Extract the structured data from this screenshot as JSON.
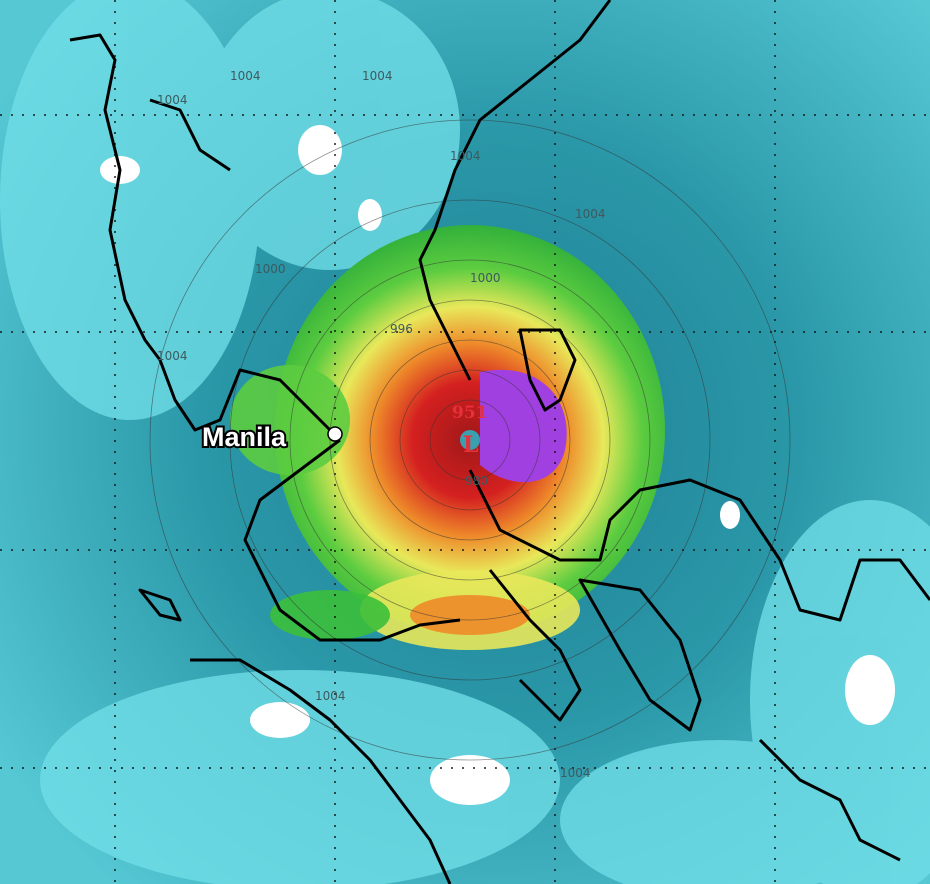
{
  "map": {
    "city_label": "Manila",
    "low_center": {
      "symbol": "L",
      "pressure": "951"
    },
    "isobar_labels": [
      "1004",
      "1004",
      "1004",
      "1004",
      "1004",
      "1000",
      "1000",
      "996",
      "1004",
      "1004",
      "1004",
      "980"
    ],
    "colors": {
      "ocean_low": "#2a8fa0",
      "ocean_light": "#6fdde6",
      "green": "#3bbf3b",
      "yellow": "#e8e85a",
      "orange": "#ee8a2a",
      "red": "#d42020",
      "dark_red": "#a01818",
      "purple": "#a040e0",
      "coast": "#000000",
      "low_marker": "#e8303a"
    }
  }
}
